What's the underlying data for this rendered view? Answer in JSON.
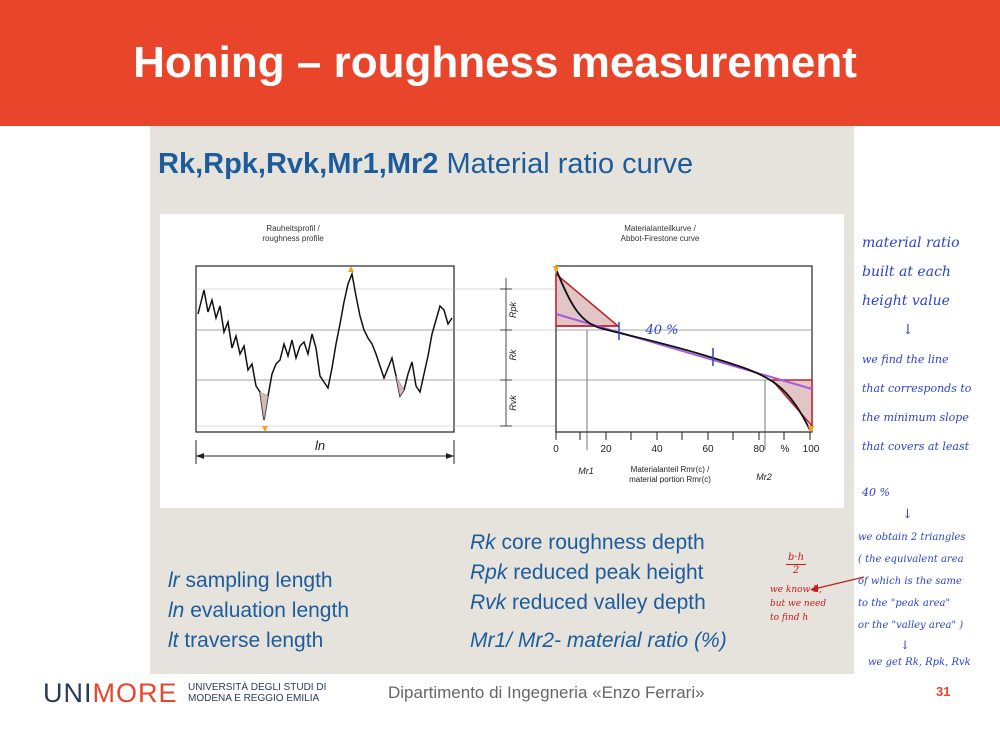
{
  "slide": {
    "title": "Honing – roughness measurement",
    "page_number": "31"
  },
  "figure": {
    "title_bold": "Rk,Rpk,Rvk,Mr1,Mr2",
    "title_rest": " Material ratio curve",
    "left_panel": {
      "caption_line1": "Rauheitsprofil /",
      "caption_line2": "roughness profile",
      "ln_label": "ln"
    },
    "right_panel": {
      "caption_line1": "Materialanteilkurve /",
      "caption_line2": "Abbot-Firestone curve",
      "axis_rpk": "Rpk",
      "axis_rk": "Rk",
      "axis_rvk": "Rvk",
      "ticks": [
        "0",
        "20",
        "40",
        "60",
        "80",
        "%",
        "100"
      ],
      "mr1": "Mr1",
      "mr2": "Mr2",
      "axis_caption_line1": "Materialanteil Rmr(c) /",
      "axis_caption_line2": "material portion Rmr(c)",
      "annotation_40": "40 %"
    },
    "legend_left": [
      {
        "sym": "lr",
        "text": "sampling length"
      },
      {
        "sym": "ln",
        "text": "evaluation length"
      },
      {
        "sym": "lt",
        "text": "traverse length"
      }
    ],
    "legend_right": [
      {
        "sym": "Rk",
        "text": "core roughness depth"
      },
      {
        "sym": "Rpk",
        "text": "reduced peak height"
      },
      {
        "sym": "Rvk",
        "text": "reduced valley depth"
      },
      {
        "sym": "Mr1/ Mr2-",
        "text": "material ratio (%)"
      }
    ],
    "colors": {
      "title_bar": "#e8452b",
      "figure_bg": "#e6e3dc",
      "figure_text": "#1d5c9c",
      "triangle_red": "#c0202a",
      "line_purple": "#a35ce0",
      "marker_orange": "#f2a21f"
    }
  },
  "handwritten": {
    "blue_lines": [
      "material ratio",
      "built at each",
      "height value",
      "↓",
      "we find the line",
      "that corresponds to",
      "the minimum slope",
      "that covers at least",
      "40 %",
      "↓",
      "we obtain 2 triangles",
      "( the equivalent area",
      "of which is the same",
      "to the \"peak area\"",
      "or the \"valley area\" )"
    ],
    "blue_tail": [
      "↓",
      "we get Rk, Rpk, Rvk"
    ],
    "fraction_top": "b·h",
    "fraction_bottom": "2",
    "red_lines": [
      "we know b,",
      "but we need",
      "to find h"
    ]
  },
  "footer": {
    "logo_uni": "UNI",
    "logo_more": "MORE",
    "university_line1": "UNIVERSITÀ DEGLI STUDI DI",
    "university_line2": "MODENA E REGGIO EMILIA",
    "department": "Dipartimento di Ingegneria «Enzo Ferrari»"
  }
}
